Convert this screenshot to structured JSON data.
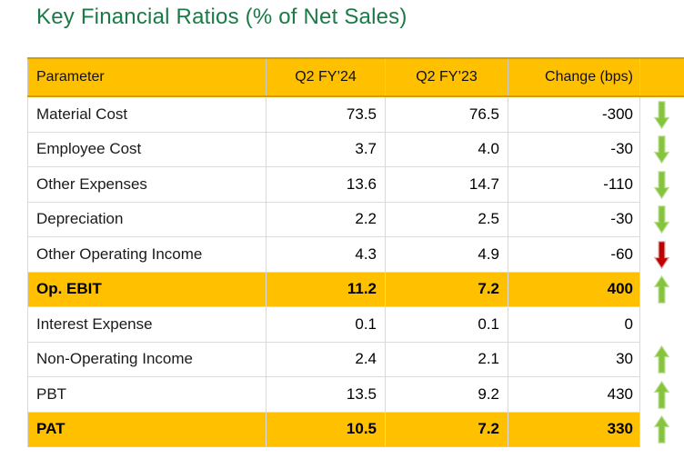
{
  "title": "Key Financial Ratios (% of Net Sales)",
  "colors": {
    "title_green": "#1B7A46",
    "header_bg": "#FFC000",
    "header_border": "#D39E00",
    "highlight_bg": "#FFC000",
    "grid_line": "#DCDCDC",
    "arrow_green_fill": "#85C43C",
    "arrow_green_stroke": "#B9DE8F",
    "arrow_red_fill": "#C00000",
    "arrow_red_stroke": "#DCA3A3"
  },
  "table": {
    "type": "table",
    "headers": [
      "Parameter",
      "Q2 FY’24",
      "Q2 FY’23",
      "Change (bps)"
    ],
    "rows": [
      {
        "name": "Material Cost",
        "q2fy24": "73.5",
        "q2fy23": "76.5",
        "change": "-300",
        "arrow": "down-green",
        "highlight": false
      },
      {
        "name": "Employee Cost",
        "q2fy24": "3.7",
        "q2fy23": "4.0",
        "change": "-30",
        "arrow": "down-green",
        "highlight": false
      },
      {
        "name": "Other Expenses",
        "q2fy24": "13.6",
        "q2fy23": "14.7",
        "change": "-110",
        "arrow": "down-green",
        "highlight": false
      },
      {
        "name": "Depreciation",
        "q2fy24": "2.2",
        "q2fy23": "2.5",
        "change": "-30",
        "arrow": "down-green",
        "highlight": false
      },
      {
        "name": "Other Operating Income",
        "q2fy24": "4.3",
        "q2fy23": "4.9",
        "change": "-60",
        "arrow": "down-red",
        "highlight": false
      },
      {
        "name": "Op. EBIT",
        "q2fy24": "11.2",
        "q2fy23": "7.2",
        "change": "400",
        "arrow": "up-green",
        "highlight": true
      },
      {
        "name": "Interest Expense",
        "q2fy24": "0.1",
        "q2fy23": "0.1",
        "change": "0",
        "arrow": "none",
        "highlight": false
      },
      {
        "name": "Non-Operating Income",
        "q2fy24": "2.4",
        "q2fy23": "2.1",
        "change": "30",
        "arrow": "up-green",
        "highlight": false
      },
      {
        "name": "PBT",
        "q2fy24": "13.5",
        "q2fy23": "9.2",
        "change": "430",
        "arrow": "up-green",
        "highlight": false
      },
      {
        "name": "PAT",
        "q2fy24": "10.5",
        "q2fy23": "7.2",
        "change": "330",
        "arrow": "up-green",
        "highlight": true
      }
    ]
  }
}
